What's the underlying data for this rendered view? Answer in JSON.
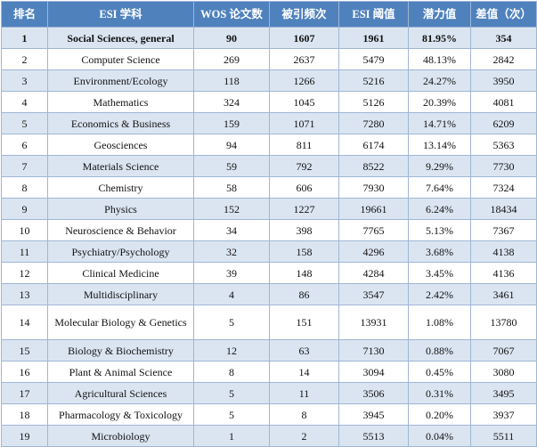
{
  "table": {
    "headers": [
      "排名",
      "ESI 学科",
      "WOS 论文数",
      "被引频次",
      "ESI 阈值",
      "潜力值",
      "差值（次）"
    ],
    "rows": [
      [
        "1",
        "Social Sciences, general",
        "90",
        "1607",
        "1961",
        "81.95%",
        "354"
      ],
      [
        "2",
        "Computer Science",
        "269",
        "2637",
        "5479",
        "48.13%",
        "2842"
      ],
      [
        "3",
        "Environment/Ecology",
        "118",
        "1266",
        "5216",
        "24.27%",
        "3950"
      ],
      [
        "4",
        "Mathematics",
        "324",
        "1045",
        "5126",
        "20.39%",
        "4081"
      ],
      [
        "5",
        "Economics & Business",
        "159",
        "1071",
        "7280",
        "14.71%",
        "6209"
      ],
      [
        "6",
        "Geosciences",
        "94",
        "811",
        "6174",
        "13.14%",
        "5363"
      ],
      [
        "7",
        "Materials Science",
        "59",
        "792",
        "8522",
        "9.29%",
        "7730"
      ],
      [
        "8",
        "Chemistry",
        "58",
        "606",
        "7930",
        "7.64%",
        "7324"
      ],
      [
        "9",
        "Physics",
        "152",
        "1227",
        "19661",
        "6.24%",
        "18434"
      ],
      [
        "10",
        "Neuroscience & Behavior",
        "34",
        "398",
        "7765",
        "5.13%",
        "7367"
      ],
      [
        "11",
        "Psychiatry/Psychology",
        "32",
        "158",
        "4296",
        "3.68%",
        "4138"
      ],
      [
        "12",
        "Clinical Medicine",
        "39",
        "148",
        "4284",
        "3.45%",
        "4136"
      ],
      [
        "13",
        "Multidisciplinary",
        "4",
        "86",
        "3547",
        "2.42%",
        "3461"
      ],
      [
        "14",
        "Molecular Biology & Genetics",
        "5",
        "151",
        "13931",
        "1.08%",
        "13780"
      ],
      [
        "15",
        "Biology & Biochemistry",
        "12",
        "63",
        "7130",
        "0.88%",
        "7067"
      ],
      [
        "16",
        "Plant & Animal Science",
        "8",
        "14",
        "3094",
        "0.45%",
        "3080"
      ],
      [
        "17",
        "Agricultural Sciences",
        "5",
        "11",
        "3506",
        "0.31%",
        "3495"
      ],
      [
        "18",
        "Pharmacology & Toxicology",
        "5",
        "8",
        "3945",
        "0.20%",
        "3937"
      ],
      [
        "19",
        "Microbiology",
        "1",
        "2",
        "5513",
        "0.04%",
        "5511"
      ]
    ]
  }
}
